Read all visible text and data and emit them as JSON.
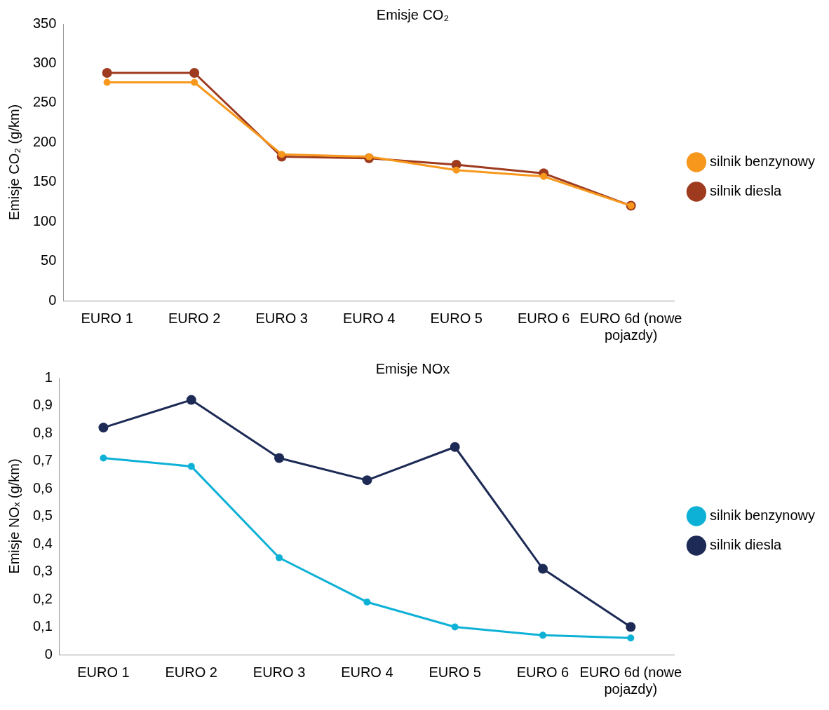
{
  "chart_data": [
    {
      "type": "line",
      "title": "Emisje CO₂",
      "ylabel": "Emisje CO₂ (g/km)",
      "categories": [
        "EURO 1",
        "EURO 2",
        "EURO 3",
        "EURO 4",
        "EURO 5",
        "EURO 6",
        "EURO 6d (nowe pojazdy)"
      ],
      "series": [
        {
          "name": "silnik diesla",
          "color": "#9e3a1e",
          "values": [
            288,
            288,
            182,
            180,
            172,
            161,
            120
          ]
        },
        {
          "name": "silnik benzynowy",
          "color": "#f7981d",
          "values": [
            276,
            276,
            185,
            182,
            165,
            157,
            120
          ]
        }
      ],
      "ylim": [
        0,
        350
      ],
      "yticks": [
        0,
        50,
        100,
        150,
        200,
        250,
        300,
        350
      ],
      "grid": false,
      "legend": "right",
      "marker": "circle",
      "line_style": "solid"
    },
    {
      "type": "line",
      "title": "Emisje NOx",
      "ylabel": "Emisje NOₓ (g/km)",
      "categories": [
        "EURO 1",
        "EURO 2",
        "EURO 3",
        "EURO 4",
        "EURO 5",
        "EURO 6",
        "EURO 6d (nowe pojazdy)"
      ],
      "series": [
        {
          "name": "silnik diesla",
          "color": "#1c2a55",
          "values": [
            0.82,
            0.92,
            0.71,
            0.63,
            0.75,
            0.31,
            0.1
          ]
        },
        {
          "name": "silnik benzynowy",
          "color": "#0eb1d6",
          "values": [
            0.71,
            0.68,
            0.35,
            0.19,
            0.1,
            0.07,
            0.06
          ]
        }
      ],
      "ylim": [
        0,
        1
      ],
      "yticks": [
        0,
        {
          "value": 0.1,
          "label": "0,1"
        },
        {
          "value": 0.2,
          "label": "0,2"
        },
        {
          "value": 0.3,
          "label": "0,3"
        },
        {
          "value": 0.4,
          "label": "0,4"
        },
        {
          "value": 0.5,
          "label": "0,5"
        },
        {
          "value": 0.6,
          "label": "0,6"
        },
        {
          "value": 0.7,
          "label": "0,7"
        },
        {
          "value": 0.8,
          "label": "0,8"
        },
        {
          "value": 0.9,
          "label": "0,9"
        },
        1
      ],
      "grid": false,
      "legend": "right",
      "marker": "circle",
      "line_style": "solid"
    }
  ]
}
